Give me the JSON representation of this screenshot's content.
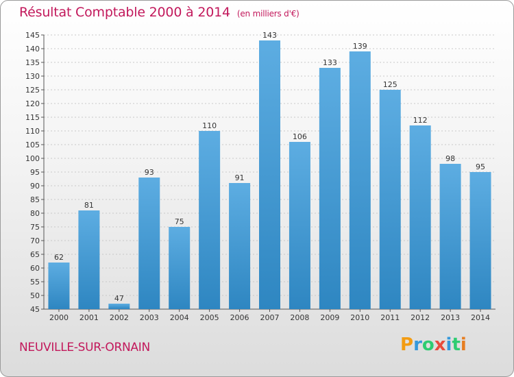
{
  "title": "Résultat Comptable 2000 à 2014",
  "subtitle": "(en milliers d'€)",
  "place": "NEUVILLE-SUR-ORNAIN",
  "logo": {
    "letters": [
      "P",
      "r",
      "o",
      "x",
      "i",
      "t",
      "i"
    ],
    "colors": [
      "#f39c12",
      "#3498db",
      "#2ecc71",
      "#e74c3c",
      "#3498db",
      "#2ecc71",
      "#e67e22"
    ]
  },
  "colors": {
    "bar_top": "#5dade2",
    "bar_bottom": "#2e86c1",
    "title": "#c2185b"
  },
  "chart_data": {
    "type": "bar",
    "categories": [
      "2000",
      "2001",
      "2002",
      "2003",
      "2004",
      "2005",
      "2006",
      "2007",
      "2008",
      "2009",
      "2010",
      "2011",
      "2012",
      "2013",
      "2014"
    ],
    "values": [
      62,
      81,
      47,
      93,
      75,
      110,
      91,
      143,
      106,
      133,
      139,
      125,
      112,
      98,
      95
    ],
    "ylim": [
      45,
      145
    ],
    "yticks": [
      45,
      50,
      55,
      60,
      65,
      70,
      75,
      80,
      85,
      90,
      95,
      100,
      105,
      110,
      115,
      120,
      125,
      130,
      135,
      140,
      145
    ],
    "grid": true
  }
}
